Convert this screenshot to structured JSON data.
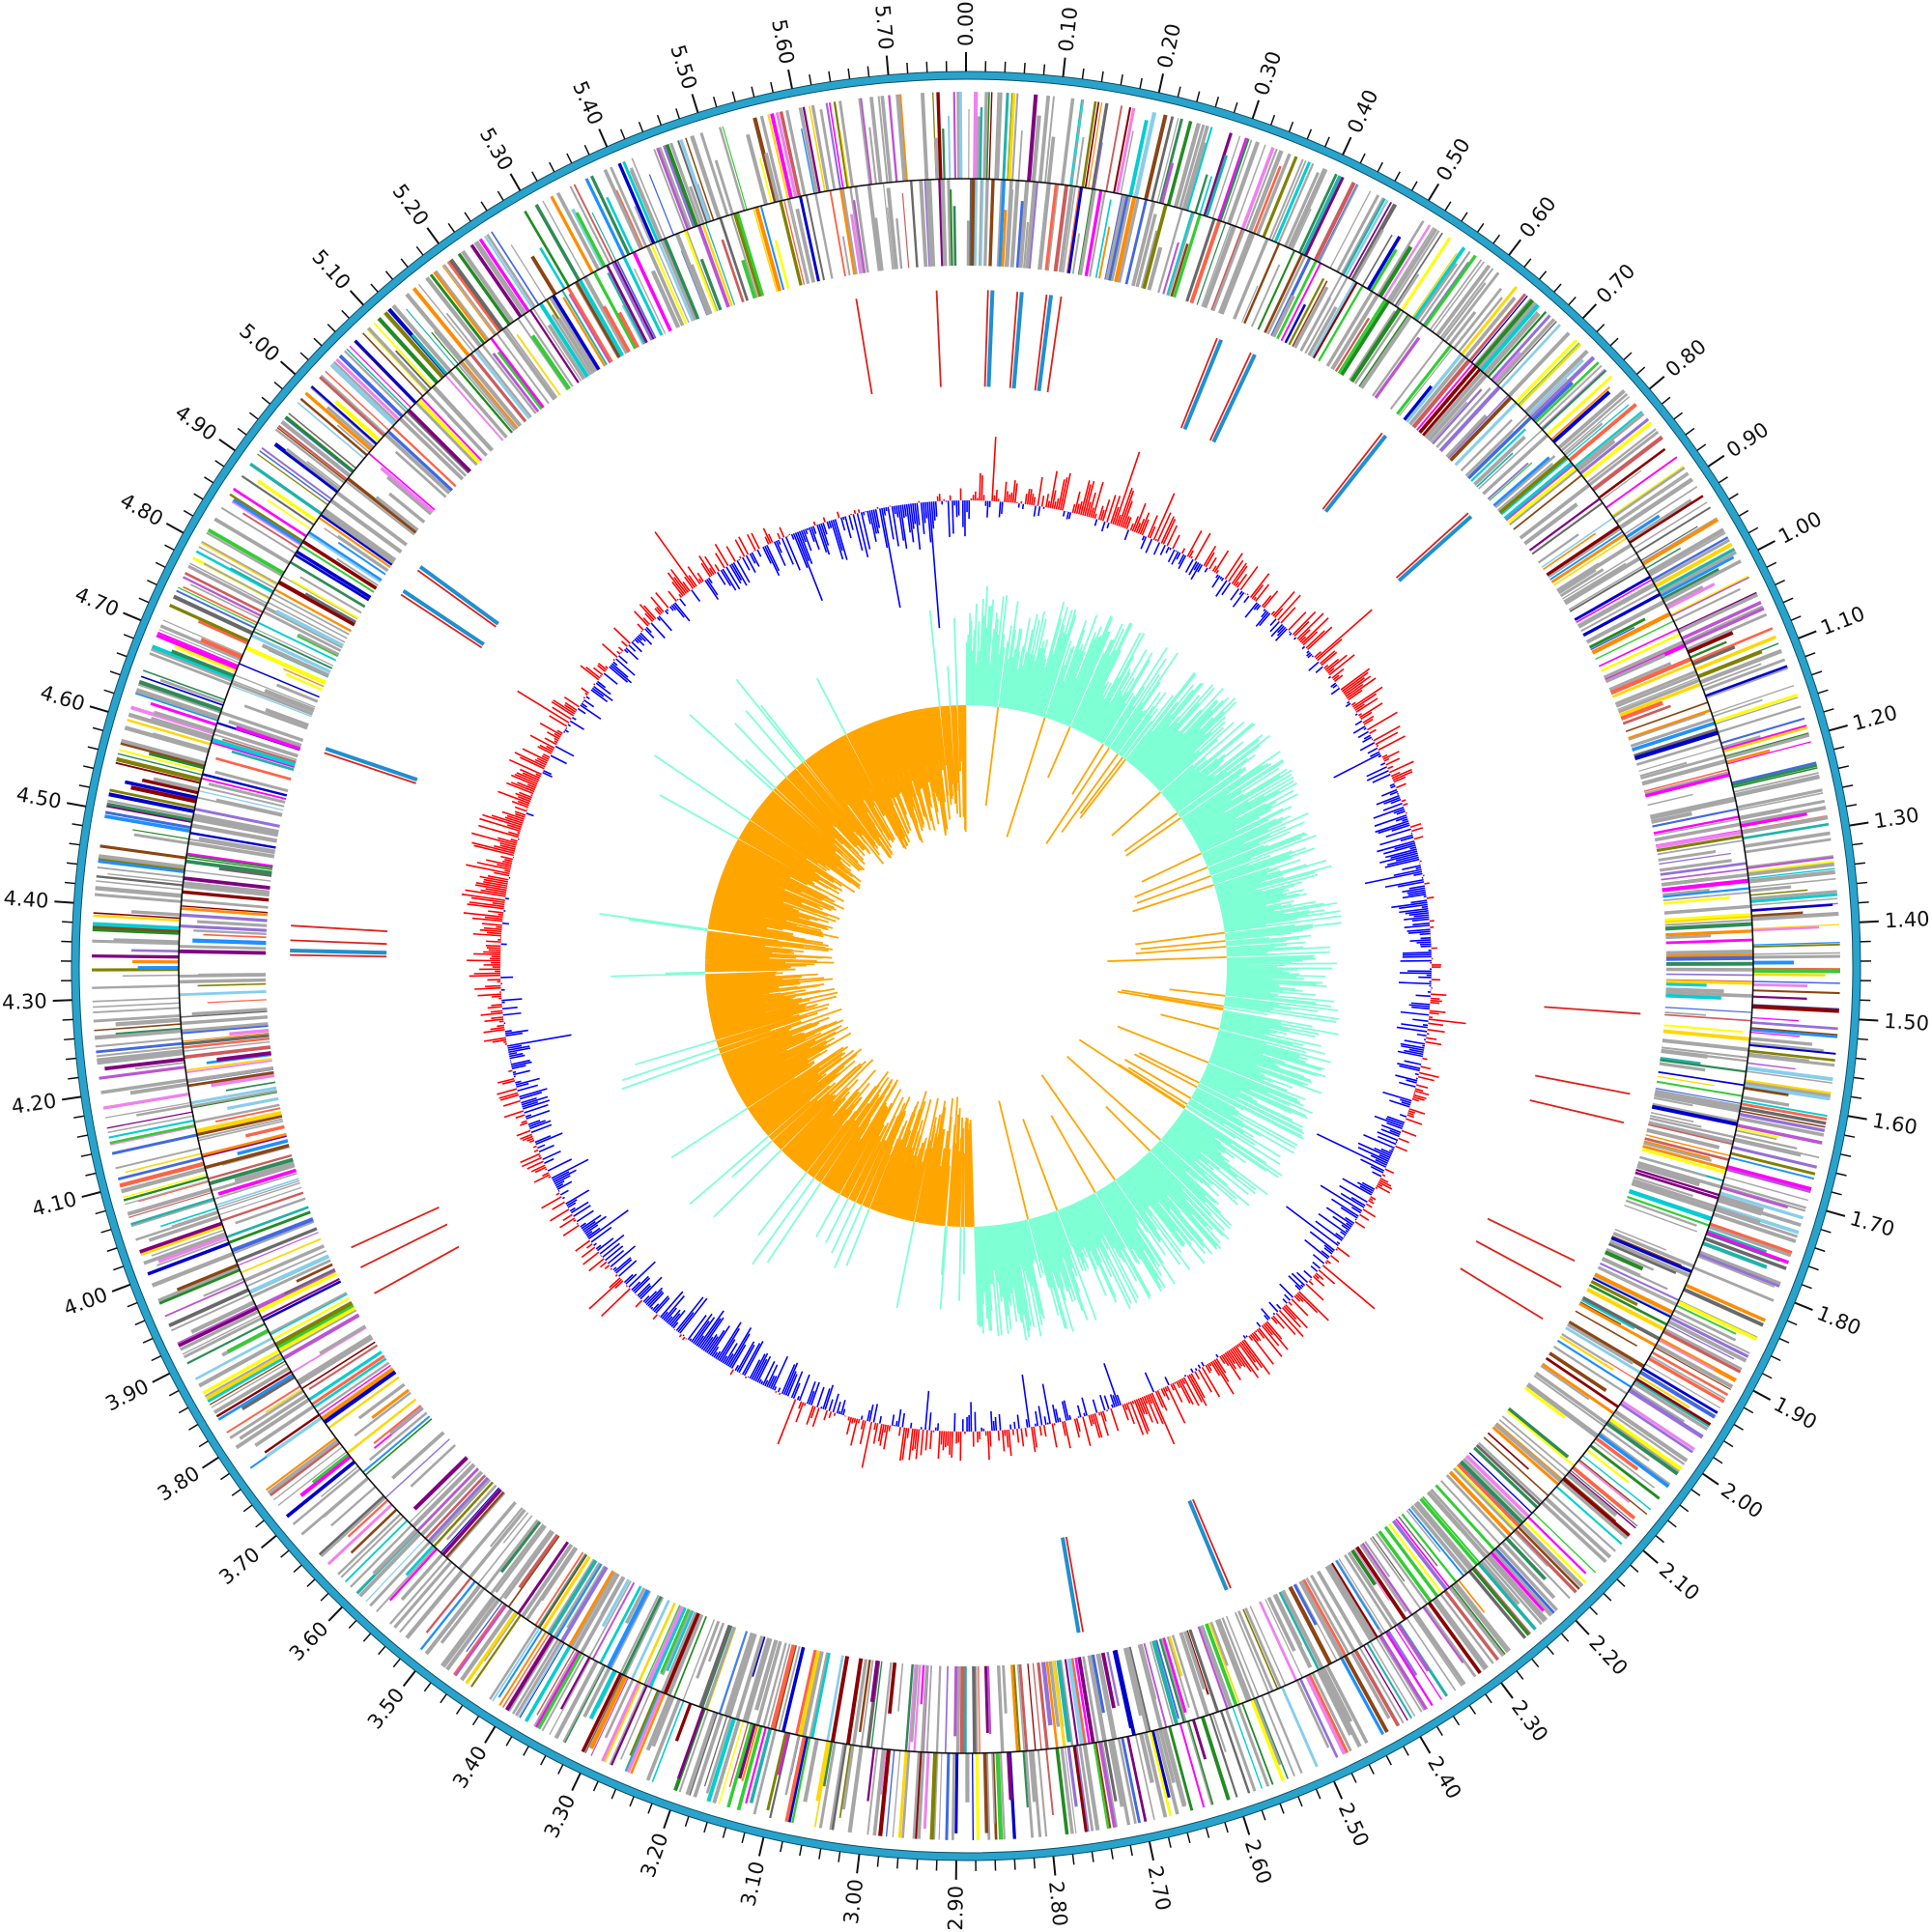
{
  "title": "",
  "genome_length_mb": 5.78,
  "scale_unit": "Mb",
  "tick_labels": [
    "0.00",
    "0.10",
    "0.20",
    "0.30",
    "0.40",
    "0.50",
    "0.60",
    "0.70",
    "0.80",
    "0.90",
    "1.00",
    "1.10",
    "1.20",
    "1.30",
    "1.40",
    "1.50",
    "1.60",
    "1.70",
    "1.80",
    "1.90",
    "2.00",
    "2.10",
    "2.20",
    "2.30",
    "2.40",
    "2.50",
    "2.60",
    "2.70",
    "2.80",
    "2.90",
    "3.00",
    "3.10",
    "3.20",
    "3.30",
    "3.40",
    "3.50",
    "3.60",
    "3.70",
    "3.80",
    "3.90",
    "4.00",
    "4.10",
    "4.20",
    "4.30",
    "4.40",
    "4.50",
    "4.60",
    "4.70",
    "4.80",
    "4.90",
    "5.00",
    "5.10",
    "5.20",
    "5.30",
    "5.40",
    "5.50",
    "5.60",
    "5.70"
  ],
  "tracks": [
    {
      "name": "scale",
      "color": "#29a3cc"
    },
    {
      "name": "cds-forward",
      "color": "multicolor"
    },
    {
      "name": "cds-reverse",
      "color": "multicolor"
    },
    {
      "name": "ncrna",
      "colors": [
        "#e0201a",
        "#1f8fd0"
      ]
    },
    {
      "name": "gc-content",
      "colors": [
        "#ff0000",
        "#0000ff"
      ]
    },
    {
      "name": "gc-skew",
      "colors": [
        "#7fffd4",
        "#ffa500"
      ]
    }
  ],
  "category_colors": [
    "#a6a6a6",
    "#ff6347",
    "#ffd700",
    "#ffff00",
    "#32cd32",
    "#1e90ff",
    "#ba55d3",
    "#ff00ff",
    "#00ced1",
    "#8b4513",
    "#228b22",
    "#0000cd",
    "#800080",
    "#808000",
    "#87ceeb",
    "#9370db",
    "#ff8c00",
    "#8b0000",
    "#20b2aa",
    "#696969",
    "#ee82ee",
    "#4169e1",
    "#2e8b57",
    "#cd5c5c"
  ],
  "ncrna_positions_mb": [
    0.03,
    0.07,
    0.11,
    0.13,
    0.35,
    0.4,
    0.61,
    0.77,
    1.51,
    1.62,
    1.66,
    1.86,
    1.9,
    1.95,
    2.52,
    2.73,
    3.87,
    3.91,
    3.94,
    4.35,
    4.37,
    4.39,
    4.63,
    4.87,
    4.91,
    5.63,
    5.74
  ],
  "blue_ncrna_positions_mb": [
    0.03,
    0.07,
    0.11,
    0.35,
    0.4,
    0.61,
    0.77,
    2.52,
    2.73,
    4.35,
    4.63,
    4.87,
    4.91
  ],
  "gc_skew_switch_mb": [
    0.0,
    2.86
  ]
}
